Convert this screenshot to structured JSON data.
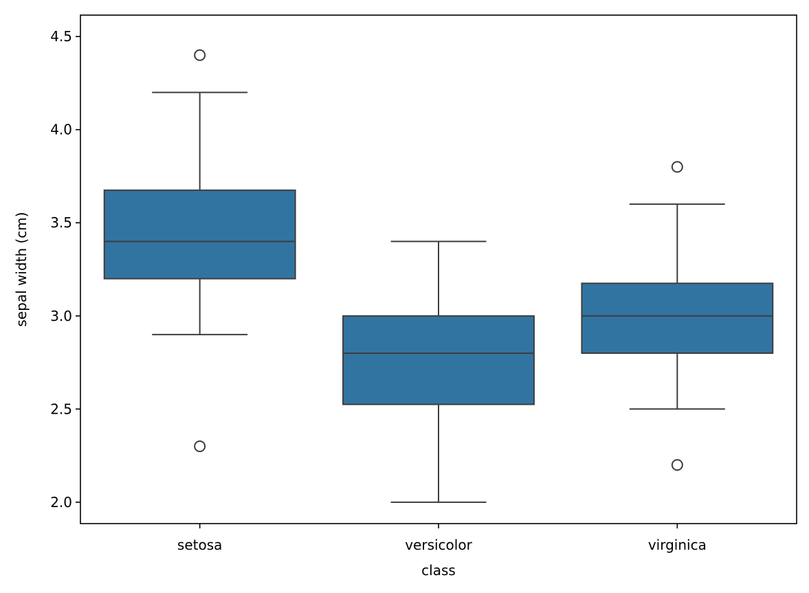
{
  "chart_data": {
    "type": "box",
    "title": "",
    "xlabel": "class",
    "ylabel": "sepal width (cm)",
    "ylim": [
      1.885,
      4.615
    ],
    "yticks": [
      "2.0",
      "2.5",
      "3.0",
      "3.5",
      "4.0",
      "4.5"
    ],
    "grid": false,
    "legend": "none",
    "box_color": "#3274a1",
    "line_color": "#3d3d3d",
    "categories": [
      "setosa",
      "versicolor",
      "virginica"
    ],
    "boxes": [
      {
        "category": "setosa",
        "q1": 3.2,
        "median": 3.4,
        "q3": 3.675,
        "whisker_low": 2.9,
        "whisker_high": 4.2,
        "outliers": [
          4.4,
          2.3
        ]
      },
      {
        "category": "versicolor",
        "q1": 2.525,
        "median": 2.8,
        "q3": 3.0,
        "whisker_low": 2.0,
        "whisker_high": 3.4,
        "outliers": []
      },
      {
        "category": "virginica",
        "q1": 2.8,
        "median": 3.0,
        "q3": 3.175,
        "whisker_low": 2.5,
        "whisker_high": 3.6,
        "outliers": [
          3.8,
          2.2
        ]
      }
    ]
  }
}
